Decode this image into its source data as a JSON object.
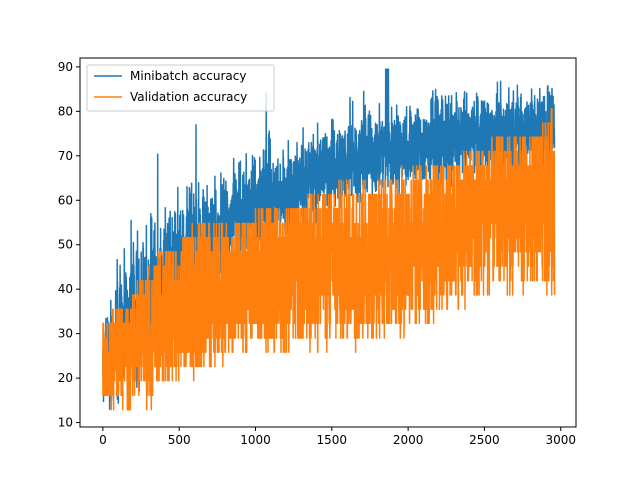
{
  "chart_data": {
    "type": "line",
    "title": "",
    "xlabel": "",
    "ylabel": "",
    "xlim": [
      -150,
      3100
    ],
    "ylim": [
      9,
      92
    ],
    "xticks": [
      0,
      500,
      1000,
      1500,
      2000,
      2500,
      3000
    ],
    "yticks": [
      10,
      20,
      30,
      40,
      50,
      60,
      70,
      80,
      90
    ],
    "grid": false,
    "legend_position": "top-left",
    "n_points": 2960,
    "series": [
      {
        "name": "Minibatch accuracy",
        "color": "#1f77b4",
        "trend_x": [
          0,
          100,
          200,
          300,
          400,
          500,
          600,
          700,
          800,
          900,
          1000,
          1200,
          1400,
          1600,
          1800,
          2000,
          2200,
          2400,
          2600,
          2800,
          2960
        ],
        "trend_center": [
          22,
          30,
          34,
          38,
          42,
          47,
          50,
          52,
          55,
          57,
          59,
          62,
          66,
          69,
          71,
          72,
          73,
          74,
          75,
          76,
          77
        ],
        "trend_spread": [
          6,
          8,
          10,
          10,
          9,
          8,
          8,
          7,
          7,
          7,
          7,
          6,
          6,
          6,
          6,
          6,
          6,
          6,
          6,
          6,
          6
        ],
        "min": 13,
        "max": 89.5
      },
      {
        "name": "Validation accuracy",
        "color": "#ff7f0e",
        "levels": [
          12.9,
          16.1,
          19.4,
          22.6,
          25.8,
          29.0,
          32.3,
          35.5,
          38.7,
          41.9,
          45.2,
          48.4,
          51.6,
          54.8,
          58.1,
          61.3,
          64.5,
          67.7,
          71.0,
          74.2,
          77.4,
          80.6
        ],
        "trend_x": [
          0,
          100,
          200,
          300,
          400,
          500,
          600,
          800,
          1000,
          1200,
          1400,
          1600,
          1800,
          2000,
          2200,
          2400,
          2600,
          2800,
          2960
        ],
        "trend_low": [
          12.9,
          12.9,
          12.9,
          12.9,
          16.1,
          19.4,
          19.4,
          22.6,
          25.8,
          25.8,
          25.8,
          25.8,
          29.0,
          29.0,
          32.3,
          35.5,
          38.7,
          38.7,
          38.7
        ],
        "trend_high": [
          32.3,
          35.5,
          38.7,
          45.2,
          48.4,
          51.6,
          54.8,
          54.8,
          58.1,
          58.1,
          61.3,
          64.5,
          64.5,
          67.7,
          67.7,
          71.0,
          74.2,
          74.2,
          80.6
        ]
      }
    ]
  }
}
